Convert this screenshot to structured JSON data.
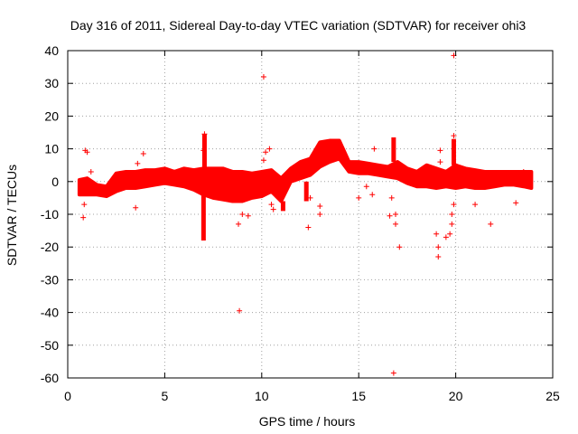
{
  "chart_data": {
    "type": "scatter",
    "title": "Day 316 of 2011, Sidereal Day-to-day VTEC variation (SDTVAR) for receiver ohi3",
    "xlabel": "GPS time / hours",
    "ylabel": "SDTVAR / TECUs",
    "xlim": [
      0,
      25
    ],
    "ylim": [
      -60,
      40
    ],
    "xticks": [
      0,
      5,
      10,
      15,
      20,
      25
    ],
    "yticks": [
      -60,
      -50,
      -40,
      -30,
      -20,
      -10,
      0,
      10,
      20,
      30,
      40
    ],
    "grid": true,
    "marker": "+",
    "series": [
      {
        "name": "SDTVAR",
        "color": "#ff0000",
        "band": {
          "x": [
            0.6,
            1.0,
            1.5,
            2.0,
            2.5,
            3.0,
            3.5,
            4.0,
            4.5,
            5.0,
            5.5,
            6.0,
            6.5,
            7.0,
            7.5,
            8.0,
            8.5,
            9.0,
            9.5,
            10.0,
            10.5,
            11.0,
            11.5,
            12.0,
            12.5,
            13.0,
            13.5,
            14.0,
            14.5,
            15.0,
            15.5,
            16.0,
            16.5,
            17.0,
            17.5,
            18.0,
            18.5,
            19.0,
            19.5,
            20.0,
            20.5,
            21.0,
            21.5,
            22.0,
            22.5,
            23.0,
            23.5,
            23.9
          ],
          "upper": [
            0.5,
            1.0,
            -1.0,
            -1.5,
            2.5,
            3.0,
            3.0,
            3.5,
            3.5,
            4.0,
            3.0,
            4.0,
            3.5,
            4.0,
            4.0,
            4.0,
            3.0,
            3.0,
            2.5,
            3.0,
            3.5,
            1.0,
            4.0,
            6.0,
            7.0,
            12.0,
            12.5,
            12.5,
            6.0,
            6.0,
            5.5,
            5.0,
            4.5,
            6.0,
            4.0,
            3.0,
            5.0,
            4.0,
            3.0,
            5.0,
            4.0,
            3.5,
            3.0,
            3.0,
            3.0,
            3.0,
            3.0,
            3.0
          ],
          "lower": [
            -4.0,
            -4.0,
            -4.0,
            -4.5,
            -3.0,
            -2.0,
            -2.0,
            -1.5,
            -1.0,
            -0.5,
            -1.0,
            -1.5,
            -2.5,
            -4.0,
            -5.0,
            -5.5,
            -6.0,
            -6.0,
            -5.0,
            -4.5,
            -3.0,
            -6.0,
            0.0,
            1.0,
            2.0,
            4.5,
            6.0,
            7.0,
            3.0,
            2.5,
            2.5,
            2.0,
            1.5,
            1.0,
            -0.5,
            -1.5,
            -1.5,
            -2.0,
            -1.5,
            -2.0,
            -1.5,
            -2.0,
            -2.0,
            -1.5,
            -1.0,
            -1.0,
            -1.5,
            -2.0
          ]
        },
        "spikes": [
          {
            "x": 7.0,
            "from": -4.0,
            "to": -18.0
          },
          {
            "x": 7.05,
            "from": 4.0,
            "to": 14.5
          },
          {
            "x": 11.1,
            "from": -6.0,
            "to": -9.0
          },
          {
            "x": 12.3,
            "from": 0.0,
            "to": -6.0
          },
          {
            "x": 16.8,
            "from": 6.0,
            "to": 13.5
          },
          {
            "x": 19.9,
            "from": 5.0,
            "to": 13.0
          }
        ],
        "outliers": [
          [
            0.8,
            -11.0
          ],
          [
            0.85,
            -7.0
          ],
          [
            0.9,
            9.5
          ],
          [
            1.0,
            9.0
          ],
          [
            1.2,
            3.0
          ],
          [
            3.5,
            -8.0
          ],
          [
            3.6,
            5.5
          ],
          [
            3.7,
            -1.0
          ],
          [
            3.9,
            8.5
          ],
          [
            4.2,
            3.0
          ],
          [
            7.0,
            9.5
          ],
          [
            7.05,
            14.5
          ],
          [
            8.8,
            -13.0
          ],
          [
            8.85,
            -39.5
          ],
          [
            9.0,
            -10.0
          ],
          [
            9.3,
            -10.5
          ],
          [
            10.1,
            32.0
          ],
          [
            10.1,
            6.5
          ],
          [
            10.2,
            9.0
          ],
          [
            10.4,
            10.0
          ],
          [
            10.5,
            -7.0
          ],
          [
            10.6,
            -8.5
          ],
          [
            12.4,
            -14.0
          ],
          [
            12.5,
            -5.0
          ],
          [
            13.0,
            -7.5
          ],
          [
            13.0,
            -10.0
          ],
          [
            15.0,
            -5.0
          ],
          [
            15.4,
            -1.5
          ],
          [
            15.7,
            -4.0
          ],
          [
            15.8,
            10.0
          ],
          [
            16.6,
            -10.5
          ],
          [
            16.7,
            -5.0
          ],
          [
            16.8,
            -58.5
          ],
          [
            16.9,
            -13.0
          ],
          [
            16.9,
            -10.0
          ],
          [
            17.1,
            -20.0
          ],
          [
            19.0,
            -16.0
          ],
          [
            19.1,
            -20.0
          ],
          [
            19.1,
            -23.0
          ],
          [
            19.2,
            6.0
          ],
          [
            19.2,
            9.5
          ],
          [
            19.5,
            -17.0
          ],
          [
            19.7,
            -16.0
          ],
          [
            19.8,
            -13.0
          ],
          [
            19.8,
            -10.0
          ],
          [
            19.9,
            -7.0
          ],
          [
            19.9,
            38.5
          ],
          [
            19.9,
            14.0
          ],
          [
            21.0,
            -7.0
          ],
          [
            21.8,
            -13.0
          ],
          [
            22.0,
            1.0
          ],
          [
            23.1,
            -6.5
          ],
          [
            23.5,
            3.0
          ]
        ]
      }
    ]
  }
}
